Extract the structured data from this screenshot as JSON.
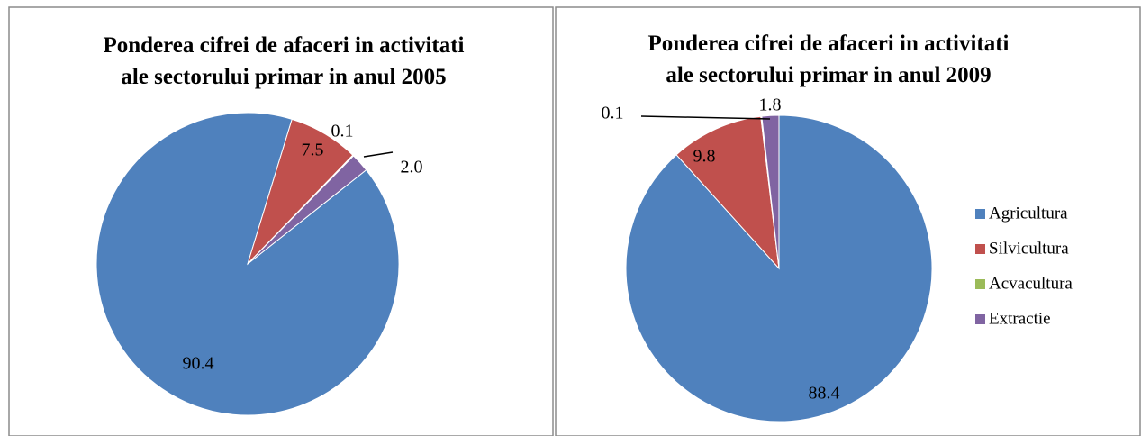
{
  "chart_data": [
    {
      "type": "pie",
      "title": "Ponderea cifrei de afaceri in activitati ale sectorului primar in anul 2005",
      "values": [
        90.4,
        7.5,
        0.1,
        2.0
      ],
      "value_labels": [
        "90.4",
        "7.5",
        "0.1",
        "2.0"
      ],
      "colors": [
        "#4f81bd",
        "#c0504d",
        "#9bbb59",
        "#8064a2"
      ]
    },
    {
      "type": "pie",
      "title": "Ponderea cifrei de afaceri in activitati ale sectorului primar in anul 2009",
      "categories": [
        "Agricultura",
        "Silvicultura",
        "Acvacultura",
        "Extractie"
      ],
      "values": [
        88.4,
        9.8,
        0.1,
        1.8
      ],
      "colors": [
        "#4f81bd",
        "#c0504d",
        "#9bbb59",
        "#8064a2"
      ],
      "legend": "right"
    }
  ]
}
